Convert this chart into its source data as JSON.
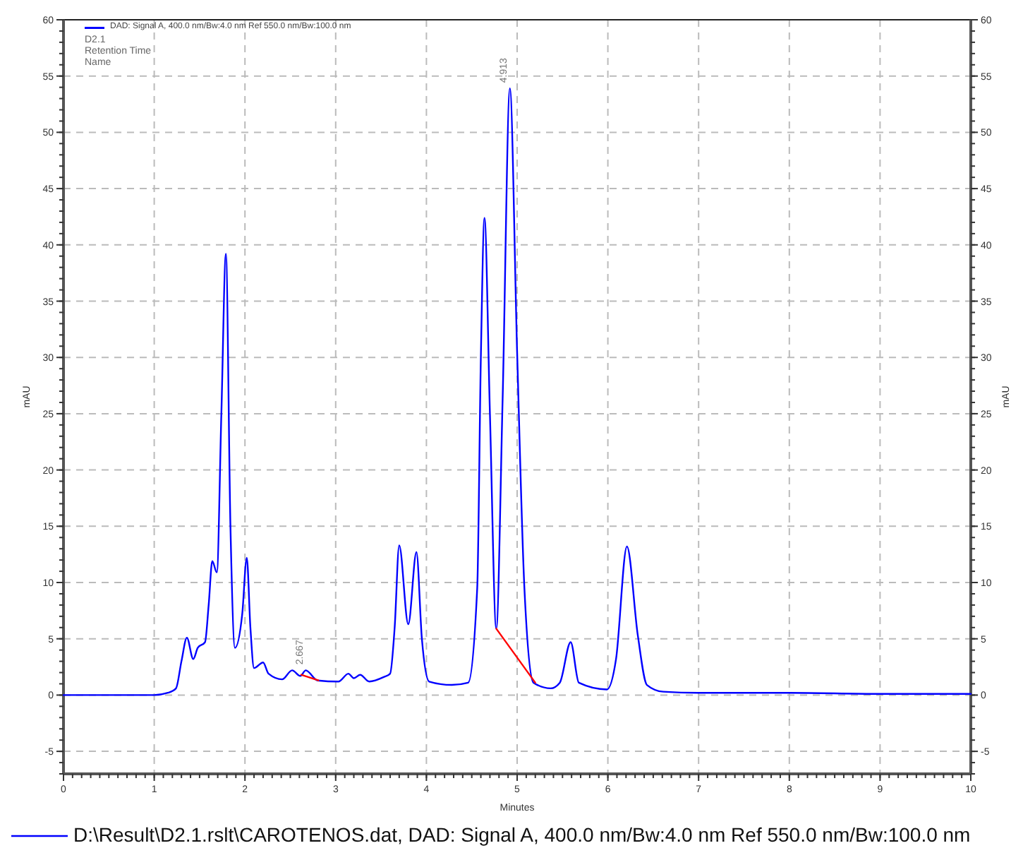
{
  "chart_data": {
    "type": "line",
    "xlabel": "Minutes",
    "ylabel": "mAU",
    "y2label": "mAU",
    "xlim": [
      0,
      10
    ],
    "xticks": [
      0,
      1,
      2,
      3,
      4,
      5,
      6,
      7,
      8,
      9,
      10
    ],
    "ylim": [
      -7,
      60
    ],
    "yticks": [
      -5,
      0,
      5,
      10,
      15,
      20,
      25,
      30,
      35,
      40,
      45,
      50,
      55,
      60
    ],
    "y2lim": [
      -7,
      60
    ],
    "y2ticks": [
      -5,
      0,
      5,
      10,
      15,
      20,
      25,
      30,
      35,
      40,
      45,
      50,
      55,
      60
    ],
    "grid": true,
    "legend": "bottom",
    "line_style": "solid",
    "series": [
      {
        "name": "D:\\Result\\D2.1.rslt\\CAROTENOS.dat, DAD: Signal A, 400.0 nm/Bw:4.0 nm Ref 550.0 nm/Bw:100.0 nm",
        "color": "#0000ff",
        "x": [
          0,
          0.5,
          1,
          1.15,
          1.24,
          1.3,
          1.36,
          1.43,
          1.48,
          1.56,
          1.6,
          1.64,
          1.69,
          1.74,
          1.79,
          1.84,
          1.89,
          1.97,
          2.02,
          2.06,
          2.1,
          2.2,
          2.26,
          2.41,
          2.52,
          2.61,
          2.67,
          2.8,
          3.03,
          3.14,
          3.2,
          3.27,
          3.37,
          3.53,
          3.6,
          3.65,
          3.7,
          3.8,
          3.89,
          3.95,
          4.03,
          4.28,
          4.46,
          4.56,
          4.6,
          4.64,
          4.7,
          4.77,
          4.84,
          4.92,
          5,
          5.08,
          5.18,
          5.37,
          5.47,
          5.59,
          5.68,
          5.99,
          6.09,
          6.21,
          6.33,
          6.43,
          6.61,
          7,
          8,
          9,
          10
        ],
        "values": [
          0,
          0,
          0,
          0.2,
          0.6,
          3,
          5.1,
          3.2,
          4.2,
          4.7,
          8,
          11.9,
          10.9,
          25,
          39.2,
          15,
          4.2,
          7.2,
          12.2,
          6,
          2.4,
          2.9,
          1.9,
          1.4,
          2.2,
          1.7,
          2.2,
          1.3,
          1.2,
          1.9,
          1.5,
          1.8,
          1.2,
          1.6,
          1.9,
          6,
          13.3,
          6.3,
          12.7,
          5,
          1.2,
          0.9,
          1.1,
          9.5,
          30,
          42.4,
          25,
          5.9,
          26.3,
          53.9,
          30.4,
          9.5,
          1.1,
          0.6,
          1.1,
          4.7,
          1.1,
          0.5,
          3.2,
          13.2,
          5.3,
          0.9,
          0.3,
          0.2,
          0.2,
          0.1,
          0.1
        ]
      },
      {
        "type": "line",
        "color": "#ff0000",
        "x": [
          2.62,
          2.81
        ],
        "values": [
          1.8,
          1.3
        ]
      },
      {
        "type": "line",
        "color": "#ff0000",
        "x": [
          4.77,
          5.2
        ],
        "values": [
          5.9,
          1.1
        ]
      }
    ],
    "annotations": [
      "DAD: Signal A, 400.0 nm/Bw:4.0 nm Ref 550.0 nm/Bw:100.0 nm",
      "D2.1",
      "Retention Time",
      "Name",
      {
        "text": "2.667",
        "x": 2.667,
        "y": 2.2
      },
      {
        "text": "4.913",
        "x": 4.913,
        "y": 53.9
      }
    ]
  }
}
